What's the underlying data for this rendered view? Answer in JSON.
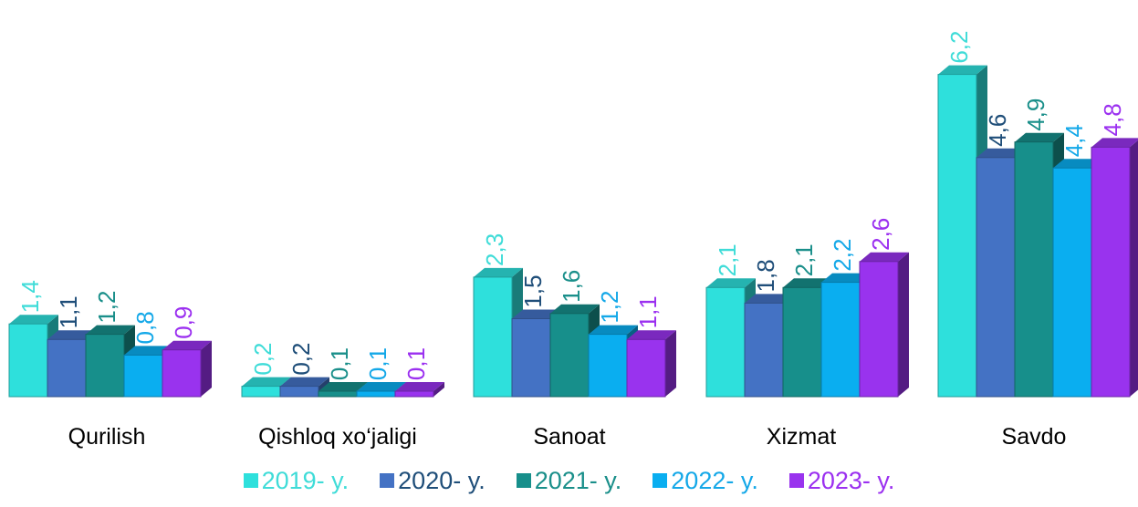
{
  "chart_data": {
    "type": "bar",
    "style": "3d-clustered-column",
    "categories": [
      "Qurilish",
      "Qishloq xo‘jaligi",
      "Sanoat",
      "Xizmat",
      "Savdo"
    ],
    "series": [
      {
        "name": "2019- y.",
        "color": "#2ee0dc",
        "label_color": "#3fdcd8",
        "values": [
          1.4,
          0.2,
          2.3,
          2.1,
          6.2
        ],
        "labels": [
          "1,4",
          "0,2",
          "2,3",
          "2,1",
          "6,2"
        ]
      },
      {
        "name": "2020- y.",
        "color": "#4472c4",
        "label_color": "#1f4e79",
        "values": [
          1.1,
          0.2,
          1.5,
          1.8,
          4.6
        ],
        "labels": [
          "1,1",
          "0,2",
          "1,5",
          "1,8",
          "4,6"
        ]
      },
      {
        "name": "2021- y.",
        "color": "#178f8b",
        "label_color": "#1a8f8a",
        "values": [
          1.2,
          0.1,
          1.6,
          2.1,
          4.9
        ],
        "labels": [
          "1,2",
          "0,1",
          "1,6",
          "2,1",
          "4,9"
        ]
      },
      {
        "name": "2022- y.",
        "color": "#0aaef0",
        "label_color": "#14a8e8",
        "values": [
          0.8,
          0.1,
          1.2,
          2.2,
          4.4
        ],
        "labels": [
          "0,8",
          "0,1",
          "1,2",
          "2,2",
          "4,4"
        ]
      },
      {
        "name": "2023- y.",
        "color": "#9933ee",
        "label_color": "#9b30f0",
        "values": [
          0.9,
          0.1,
          1.1,
          2.6,
          4.8
        ],
        "labels": [
          "0,9",
          "0,1",
          "1,1",
          "2,6",
          "4,8"
        ]
      }
    ],
    "legend_position": "bottom",
    "grid": false,
    "ylim": [
      0,
      6.5
    ]
  }
}
